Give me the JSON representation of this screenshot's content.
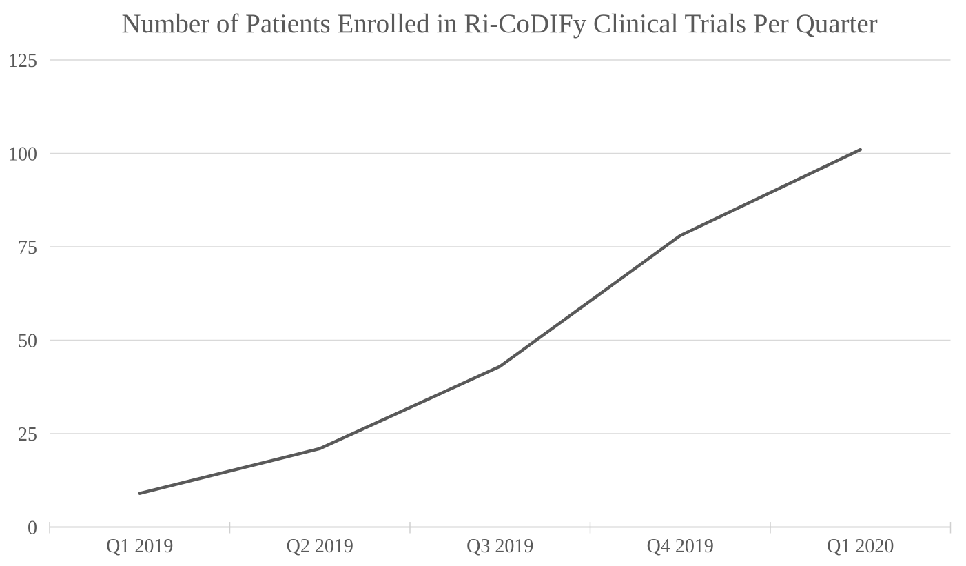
{
  "chart_data": {
    "type": "line",
    "title": "Number of Patients Enrolled in Ri-CoDIFy Clinical Trials Per Quarter",
    "categories": [
      "Q1 2019",
      "Q2 2019",
      "Q3 2019",
      "Q4 2019",
      "Q1 2020"
    ],
    "values": [
      9,
      21,
      43,
      78,
      101
    ],
    "xlabel": "",
    "ylabel": "",
    "ylim": [
      0,
      125
    ],
    "yticks": [
      0,
      25,
      50,
      75,
      100,
      125
    ],
    "grid": true,
    "legend": "none",
    "colors": {
      "line": "#595959",
      "gridline": "#d9d9d9",
      "axis": "#d0d0d0",
      "text": "#595959",
      "background": "#ffffff"
    }
  }
}
